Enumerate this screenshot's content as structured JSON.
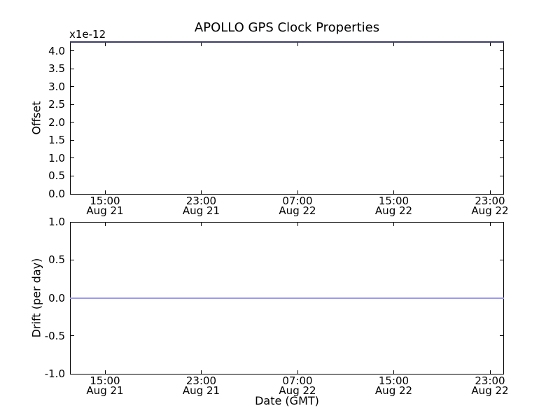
{
  "figure": {
    "background_color": "#ffffff",
    "axes_color": "#000000",
    "grid": false,
    "legend": false
  },
  "chart_data": [
    {
      "type": "line",
      "plot_id": "offset",
      "title": "APOLLO GPS Clock Properties",
      "ylabel": "Offset",
      "y_scale_label": "x1e-12",
      "ylim": [
        0.0,
        4.25
      ],
      "yticks": [
        0.0,
        0.5,
        1.0,
        1.5,
        2.0,
        2.5,
        3.0,
        3.5,
        4.0
      ],
      "ytick_labels": [
        "0.0",
        "0.5",
        "1.0",
        "1.5",
        "2.0",
        "2.5",
        "3.0",
        "3.5",
        "4.0"
      ],
      "x_ticks": [
        {
          "time": "15:00",
          "date": "Aug 21"
        },
        {
          "time": "23:00",
          "date": "Aug 21"
        },
        {
          "time": "07:00",
          "date": "Aug 22"
        },
        {
          "time": "15:00",
          "date": "Aug 22"
        },
        {
          "time": "23:00",
          "date": "Aug 22"
        }
      ],
      "series": [
        {
          "name": "offset-line",
          "type": "hline",
          "y": 4.25,
          "color": "#3b3b64"
        }
      ]
    },
    {
      "type": "line",
      "plot_id": "drift",
      "ylabel": "Drift (per day)",
      "xlabel": "Date (GMT)",
      "ylim": [
        -1.0,
        1.0
      ],
      "yticks": [
        -1.0,
        -0.5,
        0.0,
        0.5,
        1.0
      ],
      "ytick_labels": [
        "-1.0",
        "-0.5",
        "0.0",
        "0.5",
        "1.0"
      ],
      "x_ticks": [
        {
          "time": "15:00",
          "date": "Aug 21"
        },
        {
          "time": "23:00",
          "date": "Aug 21"
        },
        {
          "time": "07:00",
          "date": "Aug 22"
        },
        {
          "time": "15:00",
          "date": "Aug 22"
        },
        {
          "time": "23:00",
          "date": "Aug 22"
        }
      ],
      "series": [
        {
          "name": "drift-line",
          "type": "hline",
          "y": 0.0,
          "color": "#9a9af0"
        }
      ]
    }
  ]
}
